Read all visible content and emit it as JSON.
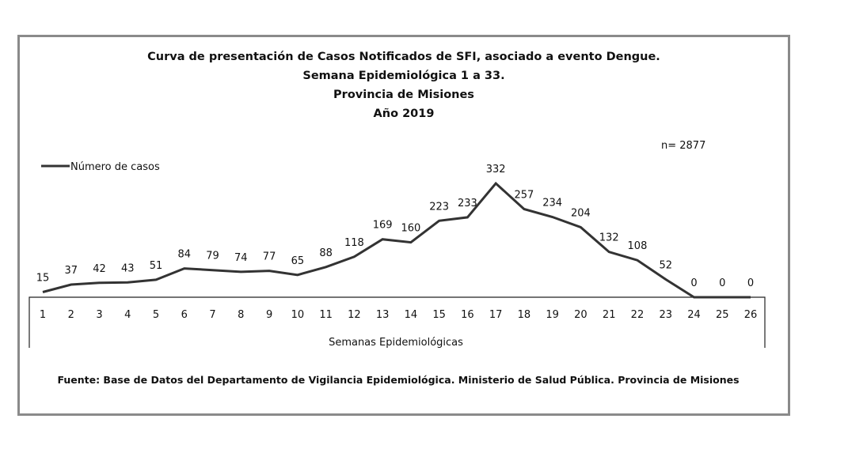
{
  "chart_data": {
    "type": "line",
    "title": [
      "Curva de presentación de Casos Notificados de SFI, asociado a evento Dengue.",
      "Semana Epidemiológica 1 a 33.",
      "Provincia de Misiones",
      "Año 2019"
    ],
    "annotation": "n= 2877",
    "xlabel": "Semanas Epidemiológicas",
    "ylabel": "",
    "legend": {
      "label": "Número de casos",
      "placement": "top-left"
    },
    "categories": [
      "1",
      "2",
      "3",
      "4",
      "5",
      "6",
      "7",
      "8",
      "9",
      "10",
      "11",
      "12",
      "13",
      "14",
      "15",
      "16",
      "17",
      "18",
      "19",
      "20",
      "21",
      "22",
      "23",
      "24",
      "25",
      "26"
    ],
    "series": [
      {
        "name": "Número de casos",
        "values": [
          15,
          37,
          42,
          43,
          51,
          84,
          79,
          74,
          77,
          65,
          88,
          118,
          169,
          160,
          223,
          233,
          332,
          257,
          234,
          204,
          132,
          108,
          52,
          0,
          0,
          0
        ]
      }
    ],
    "ylim": [
      0,
      332
    ],
    "grid": false,
    "source": "Fuente: Base de Datos del Departamento de Vigilancia Epidemiológica. Ministerio de Salud Pública. Provincia de Misiones",
    "line_color": "#333333"
  }
}
